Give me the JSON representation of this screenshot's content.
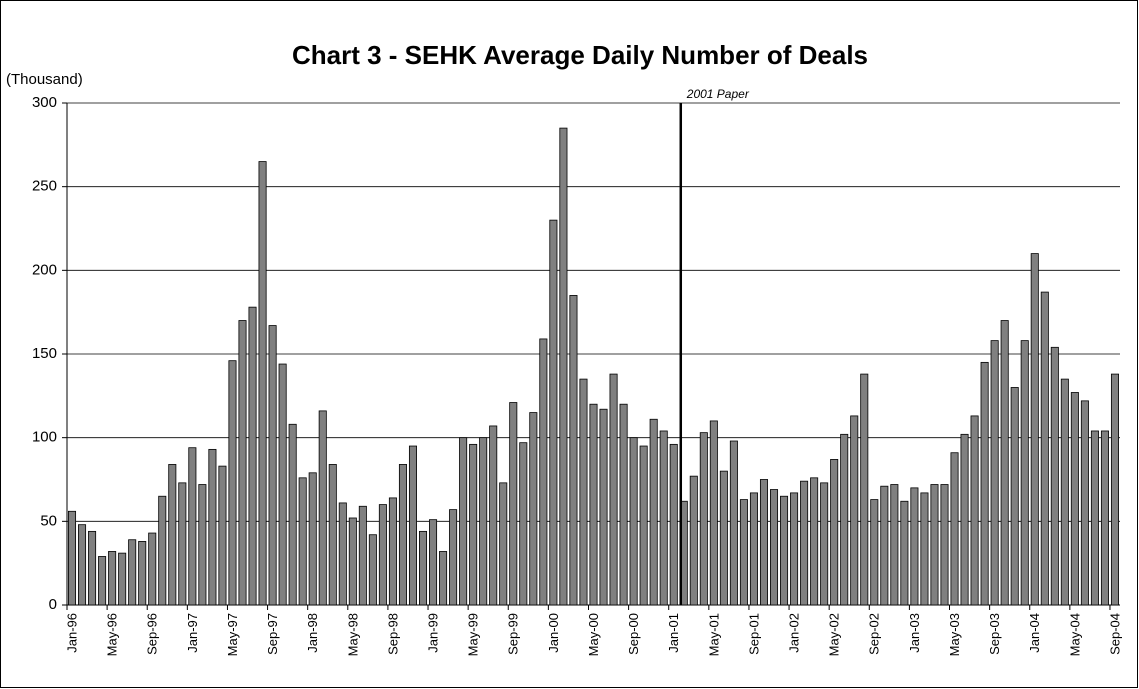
{
  "chart_data": {
    "type": "bar",
    "title": "Chart 3 - SEHK Average Daily Number of Deals",
    "y_axis_label": "(Thousand)",
    "annotation": "2001 Paper",
    "categories": [
      "Jan-96",
      null,
      null,
      null,
      "May-96",
      null,
      null,
      null,
      "Sep-96",
      null,
      null,
      null,
      "Jan-97",
      null,
      null,
      null,
      "May-97",
      null,
      null,
      null,
      "Sep-97",
      null,
      null,
      null,
      "Jan-98",
      null,
      null,
      null,
      "May-98",
      null,
      null,
      null,
      "Sep-98",
      null,
      null,
      null,
      "Jan-99",
      null,
      null,
      null,
      "May-99",
      null,
      null,
      null,
      "Sep-99",
      null,
      null,
      null,
      "Jan-00",
      null,
      null,
      null,
      "May-00",
      null,
      null,
      null,
      "Sep-00",
      null,
      null,
      null,
      "Jan-01",
      null,
      null,
      null,
      "May-01",
      null,
      null,
      null,
      "Sep-01",
      null,
      null,
      null,
      "Jan-02",
      null,
      null,
      null,
      "May-02",
      null,
      null,
      null,
      "Sep-02",
      null,
      null,
      null,
      "Jan-03",
      null,
      null,
      null,
      "May-03",
      null,
      null,
      null,
      "Sep-03",
      null,
      null,
      null,
      "Jan-04",
      null,
      null,
      null,
      "May-04",
      null,
      null,
      null,
      "Sep-04"
    ],
    "values": [
      56,
      48,
      44,
      29,
      32,
      31,
      39,
      38,
      43,
      65,
      84,
      73,
      94,
      72,
      93,
      83,
      146,
      170,
      178,
      265,
      167,
      144,
      108,
      76,
      79,
      116,
      84,
      61,
      52,
      59,
      42,
      60,
      64,
      84,
      95,
      44,
      51,
      32,
      57,
      100,
      96,
      100,
      107,
      73,
      121,
      97,
      115,
      159,
      230,
      285,
      185,
      135,
      120,
      117,
      138,
      120,
      100,
      95,
      111,
      104,
      96,
      62,
      77,
      103,
      110,
      80,
      98,
      63,
      67,
      75,
      69,
      65,
      67,
      74,
      76,
      73,
      87,
      102,
      113,
      138,
      63,
      71,
      72,
      62,
      70,
      67,
      72,
      72,
      91,
      102,
      113,
      145,
      158,
      170,
      130,
      158,
      210,
      187,
      154,
      135,
      127,
      122,
      104,
      104,
      138
    ],
    "color": "#808080",
    "ylim": [
      0,
      300
    ],
    "yticks": [
      0,
      50,
      100,
      150,
      200,
      250,
      300
    ],
    "grid": true
  }
}
